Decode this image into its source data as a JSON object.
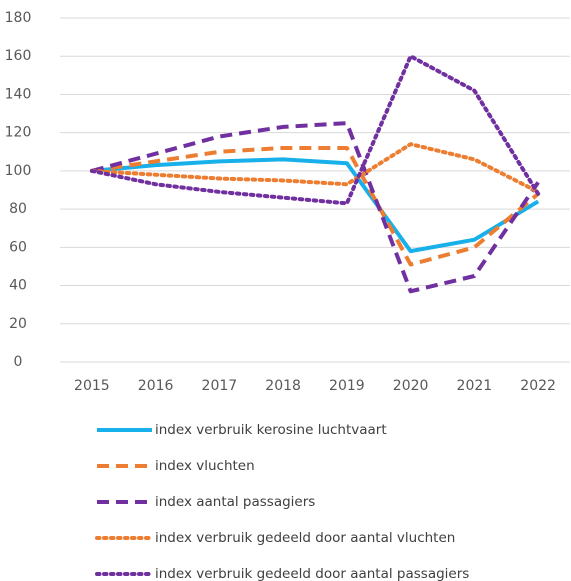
{
  "chart_data": {
    "type": "line",
    "categories": [
      "2015",
      "2016",
      "2017",
      "2018",
      "2019",
      "2020",
      "2021",
      "2022"
    ],
    "ylim": [
      0,
      180
    ],
    "yticks": [
      0,
      20,
      40,
      60,
      80,
      100,
      120,
      140,
      160,
      180
    ],
    "grid": true,
    "series": [
      {
        "name": "index verbruik kerosine luchtvaart",
        "color": "#17b0ea",
        "dash": "solid",
        "values": [
          100,
          103,
          105,
          106,
          104,
          58,
          64,
          84
        ]
      },
      {
        "name": "index vluchten",
        "color": "#ed7d31",
        "dash": "dashed",
        "values": [
          100,
          105,
          110,
          112,
          112,
          51,
          60,
          88
        ]
      },
      {
        "name": "index aantal passagiers",
        "color": "#7030a0",
        "dash": "dashed",
        "values": [
          100,
          109,
          118,
          123,
          125,
          37,
          45,
          94
        ]
      },
      {
        "name": "index verbruik gedeeld door aantal vluchten",
        "color": "#ed7d31",
        "dash": "dotted",
        "values": [
          100,
          98,
          96,
          95,
          93,
          114,
          106,
          89
        ]
      },
      {
        "name": "index verbruik gedeeld door aantal passagiers",
        "color": "#7030a0",
        "dash": "dotted",
        "values": [
          100,
          93,
          89,
          86,
          83,
          160,
          142,
          88
        ]
      }
    ]
  }
}
